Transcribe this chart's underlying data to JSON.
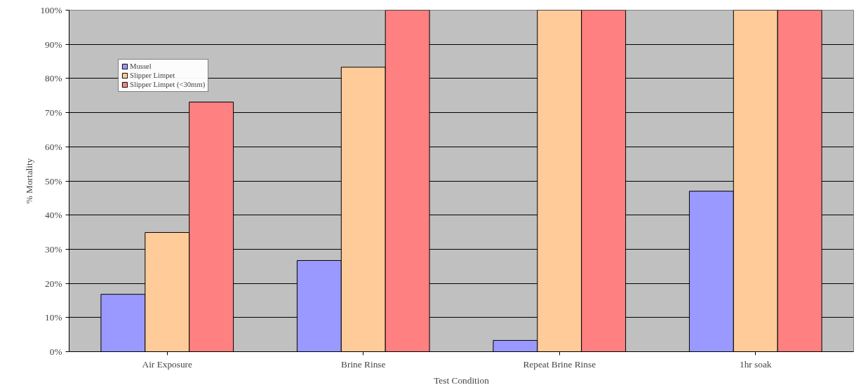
{
  "chart_data": {
    "type": "bar",
    "xlabel": "Test Condition",
    "ylabel": "% Mortality",
    "categories": [
      "Air Exposure",
      "Brine Rinse",
      "Repeat Brine Rinse",
      "1hr soak"
    ],
    "series": [
      {
        "name": "Mussel",
        "color": "#9999ff",
        "values": [
          16.8,
          26.7,
          3.3,
          47.0
        ]
      },
      {
        "name": "Slipper Limpet",
        "color": "#ffcc99",
        "values": [
          34.9,
          83.3,
          100,
          100
        ]
      },
      {
        "name": "Slipper Limpet (<30mm)",
        "color": "#ff8080",
        "values": [
          73.1,
          100,
          100,
          100
        ]
      }
    ],
    "ylim": [
      0,
      100
    ],
    "yticks": [
      {
        "value": 0,
        "label": "0%"
      },
      {
        "value": 10,
        "label": "10%"
      },
      {
        "value": 20,
        "label": "20%"
      },
      {
        "value": 30,
        "label": "30%"
      },
      {
        "value": 40,
        "label": "40%"
      },
      {
        "value": 50,
        "label": "50%"
      },
      {
        "value": 60,
        "label": "60%"
      },
      {
        "value": 70,
        "label": "70%"
      },
      {
        "value": 80,
        "label": "80%"
      },
      {
        "value": 90,
        "label": "90%"
      },
      {
        "value": 100,
        "label": "100%"
      }
    ],
    "grid": "y",
    "legend": "top left"
  }
}
